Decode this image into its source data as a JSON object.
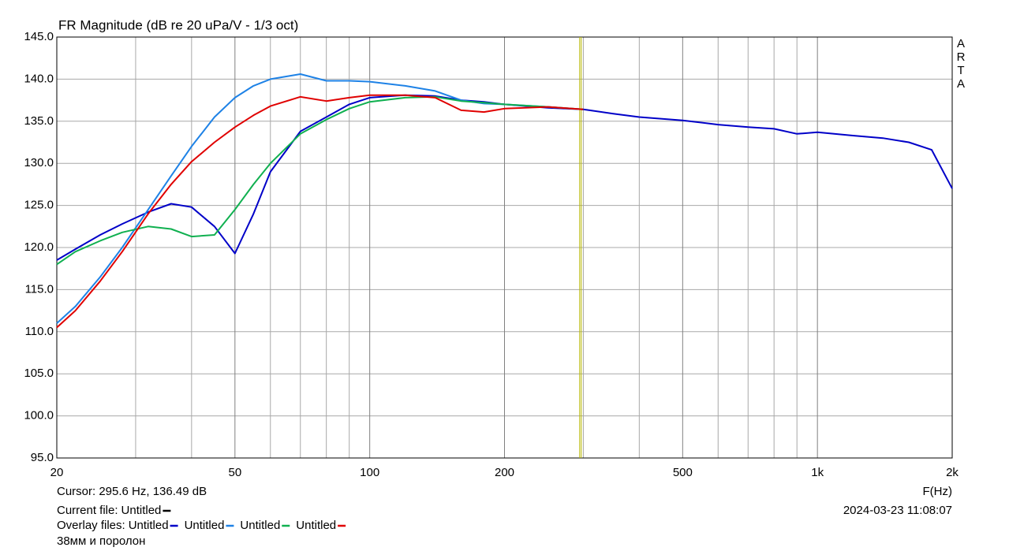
{
  "chart_data": {
    "type": "line",
    "title": "FR Magnitude (dB re 20 uPa/V - 1/3 oct)",
    "x_label": "F(Hz)",
    "side_label": "ARTA",
    "log_x": true,
    "grid": true,
    "xlim": [
      20,
      2000
    ],
    "ylim": [
      95,
      145
    ],
    "xticks": [
      20,
      50,
      100,
      200,
      500,
      {
        "value": 1000,
        "label": "1k"
      },
      {
        "value": 2000,
        "label": "2k"
      }
    ],
    "x_minor_ticks": [
      30,
      40,
      60,
      70,
      80,
      90,
      300,
      400,
      600,
      700,
      800,
      900
    ],
    "yticks": [
      {
        "value": 95,
        "label": "95.0"
      },
      {
        "value": 100,
        "label": "100.0"
      },
      {
        "value": 105,
        "label": "105.0"
      },
      {
        "value": 110,
        "label": "110.0"
      },
      {
        "value": 115,
        "label": "115.0"
      },
      {
        "value": 120,
        "label": "120.0"
      },
      {
        "value": 125,
        "label": "125.0"
      },
      {
        "value": 130,
        "label": "130.0"
      },
      {
        "value": 135,
        "label": "135.0"
      },
      {
        "value": 140,
        "label": "140.0"
      },
      {
        "value": 145,
        "label": "145.0"
      }
    ],
    "cursor": {
      "text": "Cursor: 295.6 Hz, 136.49 dB",
      "x": 295.6,
      "color": "#b8b800"
    },
    "current_file": {
      "label": "Current file:",
      "name": "Untitled",
      "color": "#000000"
    },
    "overlay_label": "Overlay files:",
    "date": "2024-03-23  11:08:07",
    "note": "38мм и поролон",
    "x": [
      20,
      22,
      25,
      28,
      32,
      36,
      40,
      45,
      50,
      55,
      60,
      70,
      80,
      90,
      100,
      120,
      140,
      160,
      180,
      200,
      250,
      300,
      350,
      400,
      500,
      600,
      700,
      800,
      900,
      1000,
      1200,
      1400,
      1600,
      1800,
      2000
    ],
    "series": [
      {
        "name": "Untitled",
        "color": "#0000c8",
        "values": [
          118.5,
          119.8,
          121.5,
          122.8,
          124.2,
          125.2,
          124.8,
          122.5,
          119.3,
          124,
          129,
          133.8,
          135.5,
          137,
          137.8,
          138.1,
          138,
          137.5,
          137.3,
          137,
          136.6,
          136.4,
          135.9,
          135.5,
          135.1,
          134.6,
          134.3,
          134.1,
          133.5,
          133.7,
          133.3,
          133,
          132.5,
          131.6,
          127
        ]
      },
      {
        "name": "Untitled",
        "color": "#1e82e6",
        "values": [
          111,
          113,
          116.5,
          120,
          124.5,
          128.5,
          132,
          135.5,
          137.8,
          139.2,
          140,
          140.6,
          139.8,
          139.8,
          139.7,
          139.2,
          138.6,
          137.5,
          137.1,
          137,
          136.7,
          136.4,
          null,
          null,
          null,
          null,
          null,
          null,
          null,
          null,
          null,
          null,
          null,
          null,
          null
        ]
      },
      {
        "name": "Untitled",
        "color": "#10b050",
        "values": [
          118,
          119.5,
          120.8,
          121.8,
          122.5,
          122.2,
          121.3,
          121.5,
          124.5,
          127.5,
          130,
          133.5,
          135.2,
          136.5,
          137.3,
          137.8,
          137.9,
          137.4,
          137.2,
          137,
          136.7,
          136.4,
          null,
          null,
          null,
          null,
          null,
          null,
          null,
          null,
          null,
          null,
          null,
          null,
          null
        ]
      },
      {
        "name": "Untitled",
        "color": "#e00000",
        "values": [
          110.5,
          112.5,
          116,
          119.5,
          124,
          127.5,
          130.2,
          132.5,
          134.3,
          135.7,
          136.8,
          137.9,
          137.4,
          137.8,
          138.1,
          138.1,
          137.8,
          136.3,
          136.1,
          136.5,
          136.7,
          136.4,
          null,
          null,
          null,
          null,
          null,
          null,
          null,
          null,
          null,
          null,
          null,
          null,
          null
        ]
      }
    ]
  }
}
